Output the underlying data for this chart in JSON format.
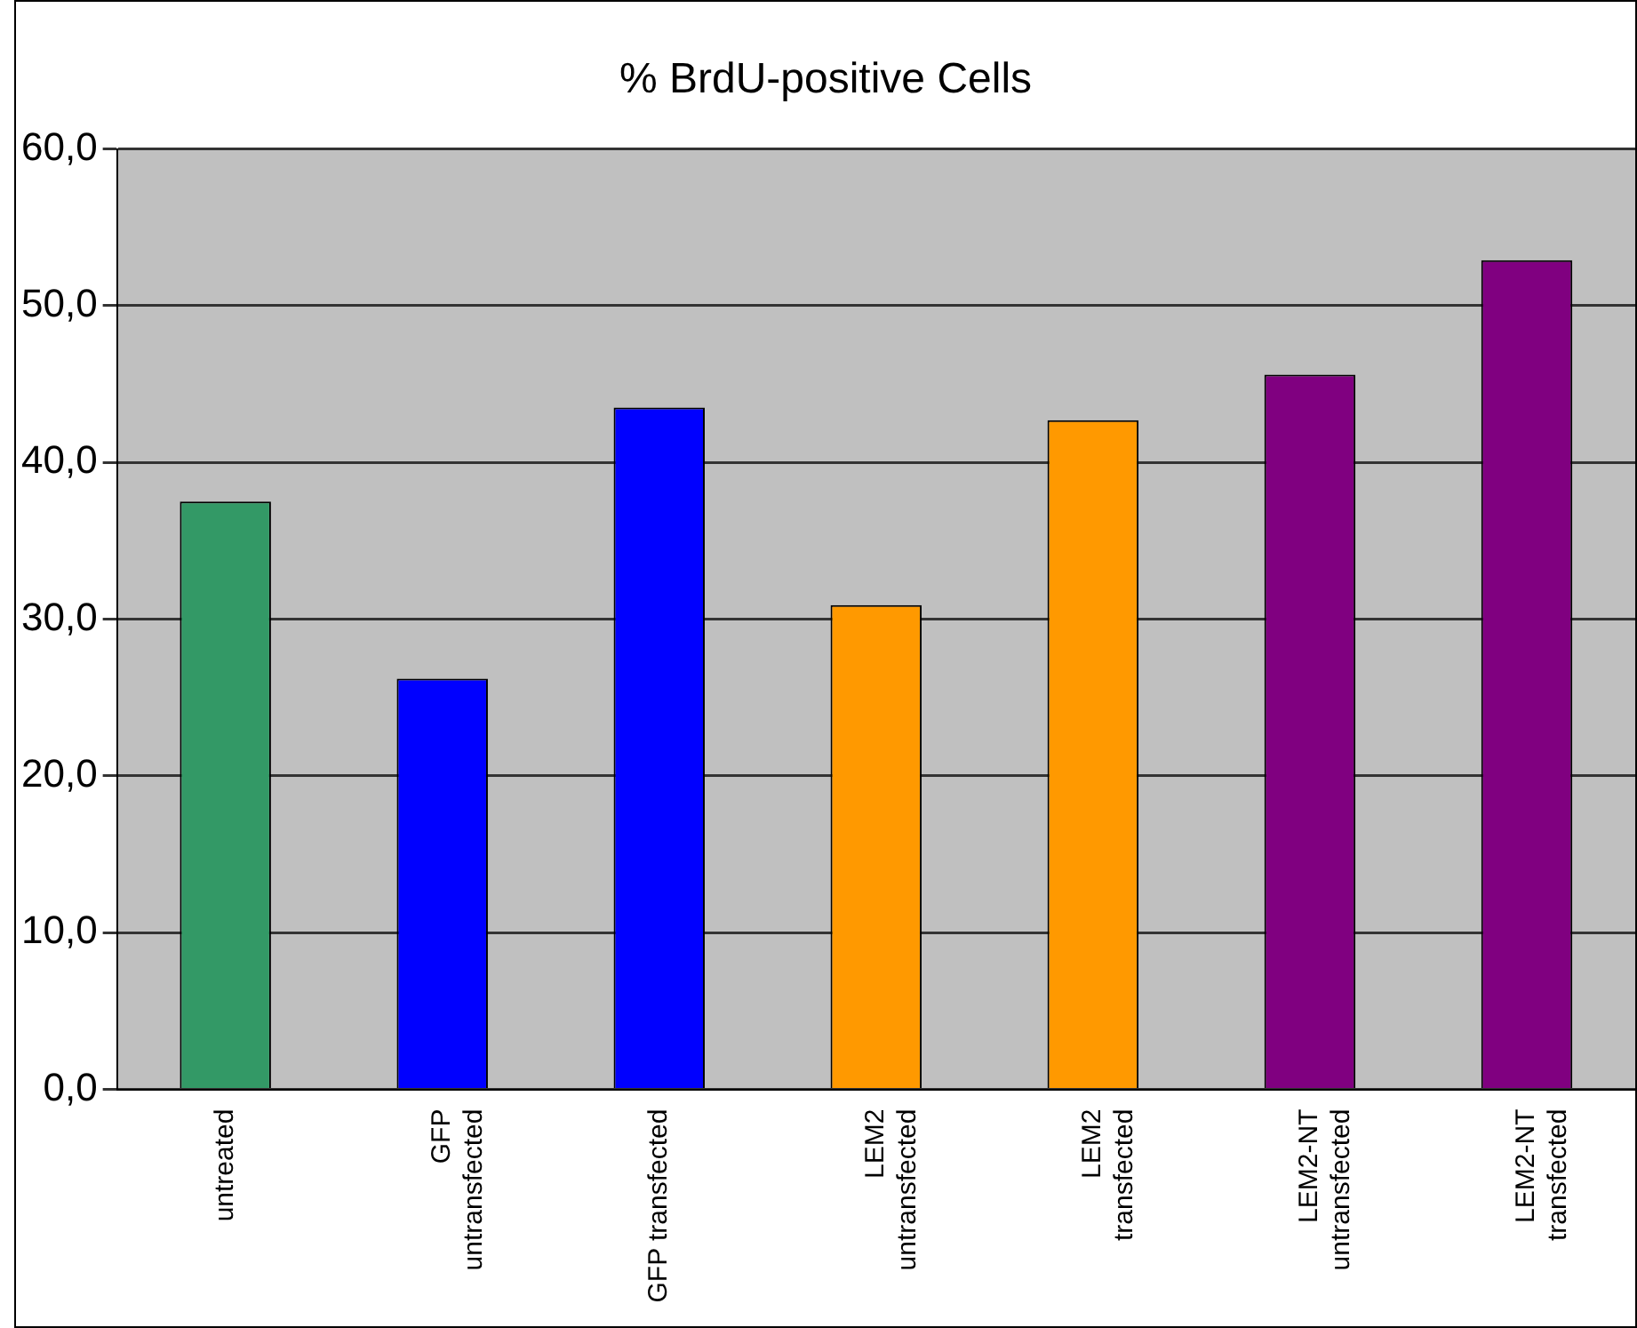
{
  "chart_data": {
    "type": "bar",
    "title": "% BrdU-positive Cells",
    "categories": [
      "untreated",
      "GFP\nuntransfected",
      "GFP transfected",
      "LEM2\nuntransfected",
      "LEM2\ntransfected",
      "LEM2-NT\nuntransfected",
      "LEM2-NT\ntransfected"
    ],
    "values": [
      37.5,
      26.2,
      43.5,
      30.9,
      42.7,
      45.6,
      52.9
    ],
    "colors": [
      "#339966",
      "#0000ff",
      "#0000ff",
      "#ff9900",
      "#ff9900",
      "#800080",
      "#800080"
    ],
    "ylim": [
      0,
      60
    ],
    "yticks": [
      {
        "value": 0,
        "label": "0,0"
      },
      {
        "value": 10,
        "label": "10,0"
      },
      {
        "value": 20,
        "label": "20,0"
      },
      {
        "value": 30,
        "label": "30,0"
      },
      {
        "value": 40,
        "label": "40,0"
      },
      {
        "value": 50,
        "label": "50,0"
      },
      {
        "value": 60,
        "label": "60,0"
      }
    ],
    "grid": "y",
    "legend": false
  }
}
